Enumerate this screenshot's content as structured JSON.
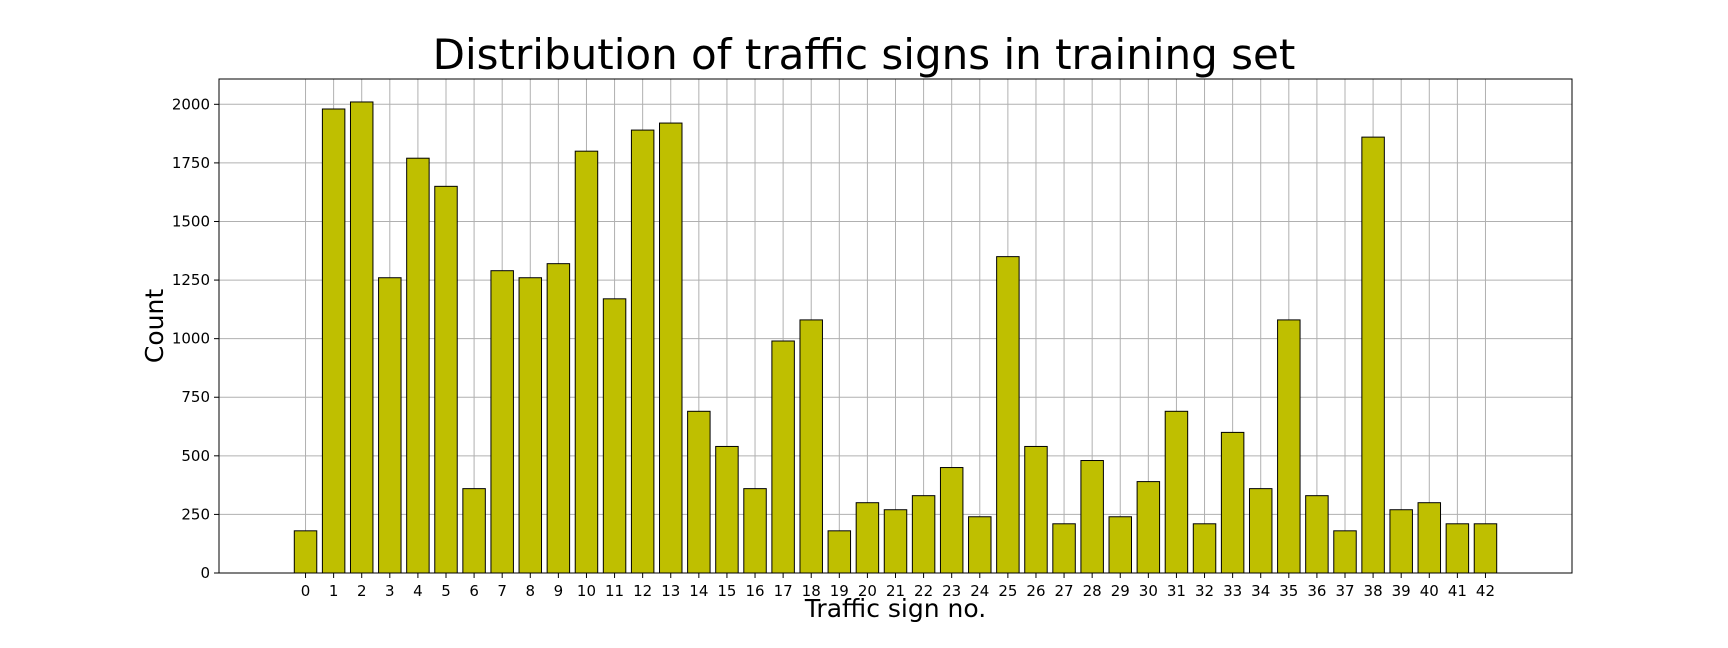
{
  "chart_data": {
    "type": "bar",
    "title": "Distribution of traffic signs in training set",
    "xlabel": "Traffic sign no.",
    "ylabel": "Count",
    "categories": [
      "0",
      "1",
      "2",
      "3",
      "4",
      "5",
      "6",
      "7",
      "8",
      "9",
      "10",
      "11",
      "12",
      "13",
      "14",
      "15",
      "16",
      "17",
      "18",
      "19",
      "20",
      "21",
      "22",
      "23",
      "24",
      "25",
      "26",
      "27",
      "28",
      "29",
      "30",
      "31",
      "32",
      "33",
      "34",
      "35",
      "36",
      "37",
      "38",
      "39",
      "40",
      "41",
      "42"
    ],
    "values": [
      180,
      1980,
      2010,
      1260,
      1770,
      1650,
      360,
      1290,
      1260,
      1320,
      1800,
      1170,
      1890,
      1920,
      690,
      540,
      360,
      990,
      1080,
      180,
      300,
      270,
      330,
      450,
      240,
      1350,
      540,
      210,
      480,
      240,
      390,
      690,
      210,
      600,
      360,
      1080,
      330,
      180,
      1860,
      270,
      300,
      210,
      210
    ],
    "ylim": [
      0,
      2108
    ],
    "yticks": [
      0,
      250,
      500,
      750,
      1000,
      1250,
      1500,
      1750,
      2000
    ],
    "grid": true,
    "bar_color": "#bfbf00",
    "edge_color": "#000000"
  }
}
